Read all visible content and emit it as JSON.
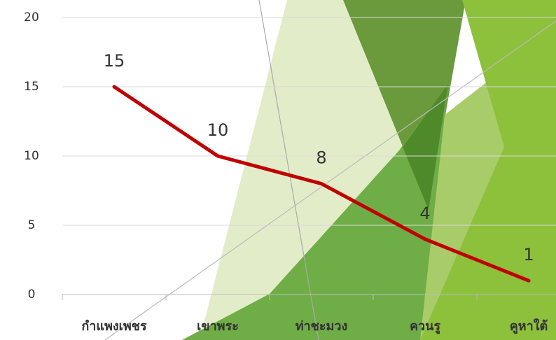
{
  "chart_data": {
    "type": "line",
    "categories": [
      "กำแพงเพชร",
      "เขาพระ",
      "ท่าชะมวง",
      "ควนรู",
      "คูหาใต้"
    ],
    "values": [
      15,
      10,
      8,
      4,
      1
    ],
    "color": "#c00000",
    "ylim": [
      0,
      20
    ],
    "yticks": [
      0,
      5,
      10,
      15,
      20
    ],
    "grid": true
  }
}
